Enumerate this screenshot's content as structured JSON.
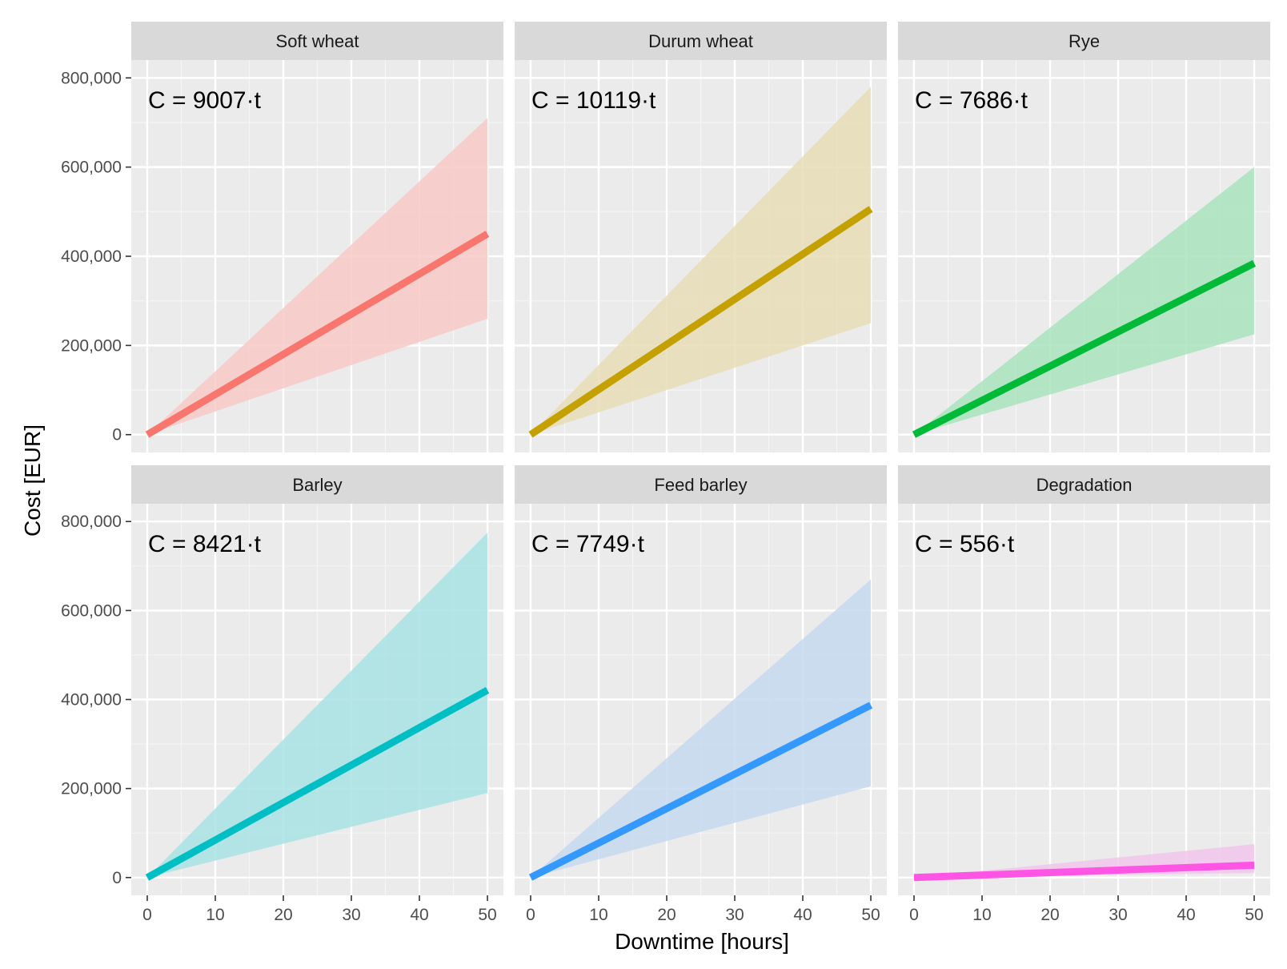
{
  "chart_data": {
    "type": "line",
    "xlabel": "Downtime [hours]",
    "ylabel": "Cost [EUR]",
    "xlim": [
      0,
      50
    ],
    "ylim": [
      0,
      800000
    ],
    "x_ticks": [
      0,
      10,
      20,
      30,
      40,
      50
    ],
    "x_tick_labels": [
      "0",
      "10",
      "20",
      "30",
      "40",
      "50"
    ],
    "y_ticks": [
      0,
      200000,
      400000,
      600000,
      800000
    ],
    "y_tick_labels": [
      "0",
      "200,000",
      "400,000",
      "600,000",
      "800,000"
    ],
    "grid": true,
    "panels": [
      {
        "title": "Soft wheat",
        "annotation": "C = 9007·t",
        "slope": 9007,
        "x": [
          0,
          50
        ],
        "y": [
          0,
          450350
        ],
        "band_lower": [
          0,
          260000
        ],
        "band_upper": [
          0,
          710000
        ],
        "color": "#F8766D",
        "fill": "#F8C9C7"
      },
      {
        "title": "Durum wheat",
        "annotation": "C = 10119·t",
        "slope": 10119,
        "x": [
          0,
          50
        ],
        "y": [
          0,
          505950
        ],
        "band_lower": [
          0,
          250000
        ],
        "band_upper": [
          0,
          780000
        ],
        "color": "#C4A000",
        "fill": "#E6DDB5"
      },
      {
        "title": "Rye",
        "annotation": "C = 7686·t",
        "slope": 7686,
        "x": [
          0,
          50
        ],
        "y": [
          0,
          384300
        ],
        "band_lower": [
          0,
          225000
        ],
        "band_upper": [
          0,
          600000
        ],
        "color": "#00BA38",
        "fill": "#A9E4BE"
      },
      {
        "title": "Barley",
        "annotation": "C = 8421·t",
        "slope": 8421,
        "x": [
          0,
          50
        ],
        "y": [
          0,
          421050
        ],
        "band_lower": [
          0,
          190000
        ],
        "band_upper": [
          0,
          775000
        ],
        "color": "#00BFC4",
        "fill": "#A9E3E4"
      },
      {
        "title": "Feed barley",
        "annotation": "C = 7749·t",
        "slope": 7749,
        "x": [
          0,
          50
        ],
        "y": [
          0,
          387450
        ],
        "band_lower": [
          0,
          205000
        ],
        "band_upper": [
          0,
          670000
        ],
        "color": "#3399FF",
        "fill": "#C5D9F0"
      },
      {
        "title": "Degradation",
        "annotation": "C = 556·t",
        "slope": 556,
        "x": [
          0,
          50
        ],
        "y": [
          0,
          27800
        ],
        "band_lower": [
          0,
          10000
        ],
        "band_upper": [
          0,
          75000
        ],
        "color": "#FF55E4",
        "fill": "#F2C6EB"
      }
    ]
  }
}
